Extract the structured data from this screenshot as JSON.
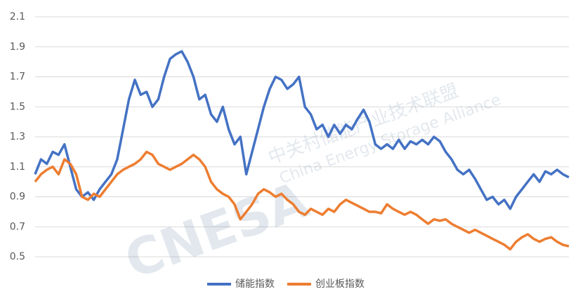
{
  "chart_data": {
    "type": "line",
    "watermark": [
      "CNESA",
      "中关村储能产业技术联盟",
      "China Energy Storage Alliance"
    ],
    "series": [
      {
        "name": "储能指数",
        "color": "#4472c4",
        "values": [
          1.05,
          1.15,
          1.12,
          1.2,
          1.18,
          1.25,
          1.1,
          0.95,
          0.9,
          0.93,
          0.88,
          0.95,
          1.0,
          1.05,
          1.15,
          1.35,
          1.55,
          1.68,
          1.58,
          1.6,
          1.5,
          1.55,
          1.7,
          1.82,
          1.85,
          1.87,
          1.8,
          1.7,
          1.55,
          1.58,
          1.45,
          1.4,
          1.5,
          1.35,
          1.25,
          1.3,
          1.05,
          1.2,
          1.35,
          1.5,
          1.62,
          1.7,
          1.68,
          1.62,
          1.65,
          1.7,
          1.5,
          1.45,
          1.35,
          1.38,
          1.3,
          1.38,
          1.32,
          1.38,
          1.35,
          1.42,
          1.48,
          1.4,
          1.25,
          1.22,
          1.25,
          1.22,
          1.28,
          1.22,
          1.27,
          1.25,
          1.28,
          1.25,
          1.3,
          1.27,
          1.2,
          1.15,
          1.08,
          1.05,
          1.08,
          1.02,
          0.95,
          0.88,
          0.9,
          0.85,
          0.88,
          0.82,
          0.9,
          0.95,
          1.0,
          1.05,
          1.0,
          1.07,
          1.05,
          1.08,
          1.05,
          1.03
        ]
      },
      {
        "name": "创业板指数",
        "color": "#ed7d31",
        "values": [
          1.0,
          1.05,
          1.08,
          1.1,
          1.05,
          1.15,
          1.12,
          1.05,
          0.9,
          0.88,
          0.92,
          0.9,
          0.95,
          1.0,
          1.05,
          1.08,
          1.1,
          1.12,
          1.15,
          1.2,
          1.18,
          1.12,
          1.1,
          1.08,
          1.1,
          1.12,
          1.15,
          1.18,
          1.15,
          1.1,
          1.0,
          0.95,
          0.92,
          0.9,
          0.85,
          0.75,
          0.8,
          0.85,
          0.92,
          0.95,
          0.93,
          0.9,
          0.92,
          0.88,
          0.85,
          0.8,
          0.78,
          0.82,
          0.8,
          0.78,
          0.82,
          0.8,
          0.85,
          0.88,
          0.86,
          0.84,
          0.82,
          0.8,
          0.8,
          0.79,
          0.85,
          0.82,
          0.8,
          0.78,
          0.8,
          0.78,
          0.75,
          0.72,
          0.75,
          0.74,
          0.75,
          0.72,
          0.7,
          0.68,
          0.66,
          0.68,
          0.66,
          0.64,
          0.62,
          0.6,
          0.58,
          0.55,
          0.6,
          0.63,
          0.65,
          0.62,
          0.6,
          0.62,
          0.63,
          0.6,
          0.58,
          0.57
        ]
      }
    ],
    "ylim": [
      0.5,
      2.1
    ],
    "yticks": [
      0.5,
      0.7,
      0.9,
      1.1,
      1.3,
      1.5,
      1.7,
      1.9,
      2.1
    ],
    "grid": true,
    "legend": "bottom"
  }
}
